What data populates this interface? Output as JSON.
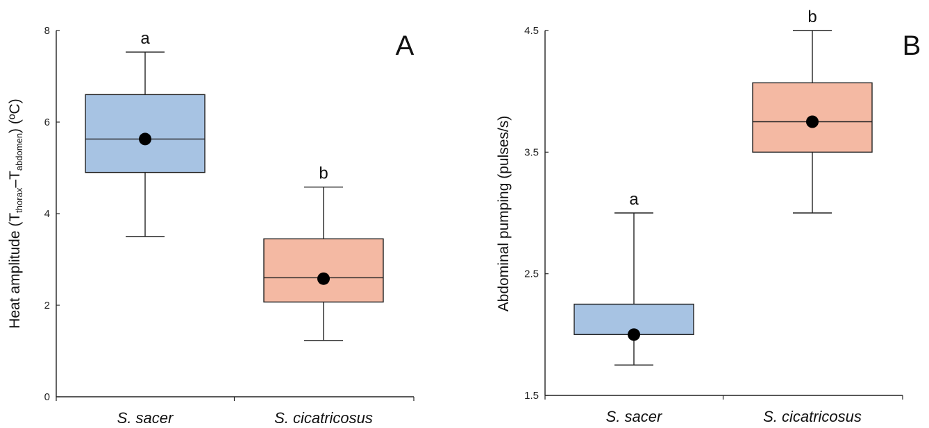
{
  "chart_data": [
    {
      "type": "box",
      "panel_label": "A",
      "ylabel": {
        "prefix": "Heat amplitude (T",
        "sub1": "thorax",
        "mid": "–T",
        "sub2": "abdomen",
        "suffix": ") (ºC)"
      },
      "ylim": [
        0,
        8
      ],
      "yticks": [
        "0",
        "2",
        "4",
        "6",
        "8"
      ],
      "categories": [
        "S. sacer",
        "S. cicatricosus"
      ],
      "boxes": [
        {
          "category": "S. sacer",
          "whisker_low": 3.5,
          "q1": 4.9,
          "median": 5.63,
          "q3": 6.6,
          "whisker_high": 7.53,
          "mean": 5.63,
          "letter": "a",
          "color": "#a7c3e3"
        },
        {
          "category": "S. cicatricosus",
          "whisker_low": 1.23,
          "q1": 2.07,
          "median": 2.6,
          "q3": 3.45,
          "whisker_high": 4.58,
          "mean": 2.58,
          "letter": "b",
          "color": "#f4b9a3"
        }
      ]
    },
    {
      "type": "box",
      "panel_label": "B",
      "ylabel": {
        "prefix": "Abdominal pumping (pulses/s)"
      },
      "ylim": [
        1.5,
        4.5
      ],
      "yticks": [
        "1.5",
        "2.5",
        "3.5",
        "4.5"
      ],
      "categories": [
        "S. sacer",
        "S. cicatricosus"
      ],
      "boxes": [
        {
          "category": "S. sacer",
          "whisker_low": 1.75,
          "q1": 2.0,
          "median": 2.0,
          "q3": 2.25,
          "whisker_high": 3.0,
          "mean": 2.0,
          "letter": "a",
          "color": "#a7c3e3"
        },
        {
          "category": "S. cicatricosus",
          "whisker_low": 3.0,
          "q1": 3.5,
          "median": 3.75,
          "q3": 4.07,
          "whisker_high": 4.5,
          "mean": 3.75,
          "letter": "b",
          "color": "#f4b9a3"
        }
      ]
    }
  ]
}
